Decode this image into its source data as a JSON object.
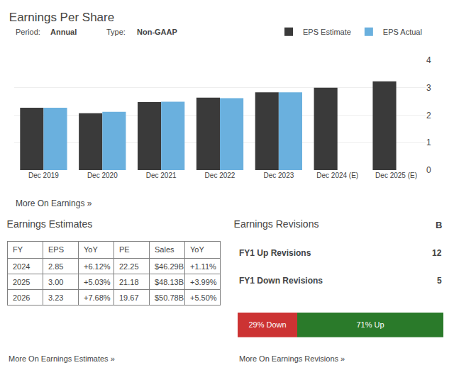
{
  "chart_data": [
    {
      "type": "bar",
      "title": "Earnings Per Share",
      "annotations": [
        "Period:",
        "Annual",
        "Type:",
        "Non-GAAP",
        "More On Earnings »"
      ],
      "categories": [
        "Dec 2019",
        "Dec 2020",
        "Dec 2021",
        "Dec 2022",
        "Dec 2023",
        "Dec 2024 (E)",
        "Dec 2025 (E)"
      ],
      "series": [
        {
          "name": "EPS Estimate",
          "color": "#3a3a3a",
          "values": [
            2.27,
            2.07,
            2.48,
            2.64,
            2.83,
            3.0,
            3.23
          ]
        },
        {
          "name": "EPS Actual",
          "color": "#6ab0de",
          "values": [
            2.27,
            2.12,
            2.49,
            2.62,
            2.83,
            null,
            null
          ]
        }
      ],
      "ylim": [
        0,
        4
      ],
      "yticks": [
        0,
        1,
        2,
        3,
        4
      ],
      "grid": true,
      "legend": "top right"
    },
    {
      "type": "table",
      "title": "Earnings Estimates",
      "columns": [
        "FY",
        "EPS",
        "YoY",
        "PE",
        "Sales",
        "YoY"
      ],
      "rows": [
        [
          "2024",
          "2.85",
          "+6.12%",
          "22.25",
          "$46.29B",
          "+1.11%"
        ],
        [
          "2025",
          "3.00",
          "+5.03%",
          "21.18",
          "$48.13B",
          "+3.99%"
        ],
        [
          "2026",
          "3.23",
          "+7.68%",
          "19.67",
          "$50.78B",
          "+5.50%"
        ]
      ],
      "annotations": [
        "More On Earnings Estimates »"
      ]
    },
    {
      "type": "bar",
      "orientation": "horizontal",
      "stacked": true,
      "title": "Earnings Revisions",
      "annotations": [
        "B",
        "More On Earnings Revisions »"
      ],
      "rows": [
        [
          "FY1 Up Revisions",
          12
        ],
        [
          "FY1 Down Revisions",
          5
        ]
      ],
      "series": [
        {
          "color": "#cc3333",
          "values": [
            29
          ],
          "value_labels": [
            "29% Down"
          ]
        },
        {
          "color": "#2a7a2a",
          "values": [
            71
          ],
          "value_labels": [
            "71% Up"
          ]
        }
      ],
      "xlim": [
        0,
        100
      ],
      "tick_labels": false,
      "data_labels": true
    }
  ]
}
